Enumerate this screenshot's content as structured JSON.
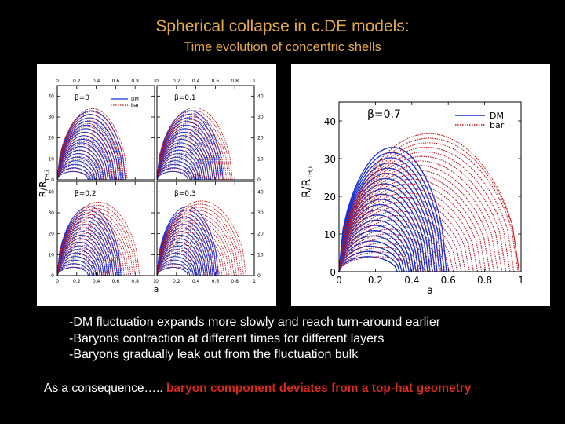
{
  "slide": {
    "title": "Spherical collapse in c.DE models:",
    "subtitle": "Time evolution of concentric shells",
    "bullets": [
      "-DM fluctuation expands more slowly and reach turn-around earlier",
      "-Baryons contraction at different times for different layers",
      "-Baryons gradually leak out from the fluctuation bulk"
    ],
    "conclusion_lead": "As a consequence…..",
    "conclusion_highlight": "baryon component deviates from a top-hat geometry"
  },
  "colors": {
    "title": "#e4a94a",
    "highlight": "#d42a1f",
    "dm": "#1530d8",
    "bar": "#c81515"
  },
  "figure_left": {
    "ylabel": "R/R",
    "ylabel_sub": "TH,i",
    "xlabel": "a",
    "xticks": [
      "0",
      "0.2",
      "0.4",
      "0.6",
      "0.8",
      "1"
    ],
    "yticks": [
      "0",
      "10",
      "20",
      "30",
      "40"
    ],
    "legend": {
      "dm": "DM",
      "bar": "bar"
    },
    "panels": [
      {
        "beta": "β=0",
        "beta_value": 0,
        "tilt": 0.0
      },
      {
        "beta": "β=0.1",
        "beta_value": 0.1,
        "tilt": 0.04
      },
      {
        "beta": "β=0.2",
        "beta_value": 0.2,
        "tilt": 0.09
      },
      {
        "beta": "β=0.3",
        "beta_value": 0.3,
        "tilt": 0.14
      }
    ]
  },
  "figure_right": {
    "beta": "β=0.7",
    "beta_value": 0.7,
    "ylabel": "R/R",
    "ylabel_sub": "TH,i",
    "xlabel": "a",
    "xticks": [
      "0",
      "0.2",
      "0.4",
      "0.6",
      "0.8",
      "1"
    ],
    "yticks": [
      "0",
      "10",
      "20",
      "30",
      "40"
    ],
    "legend": {
      "dm": "DM",
      "bar": "bar"
    }
  }
}
